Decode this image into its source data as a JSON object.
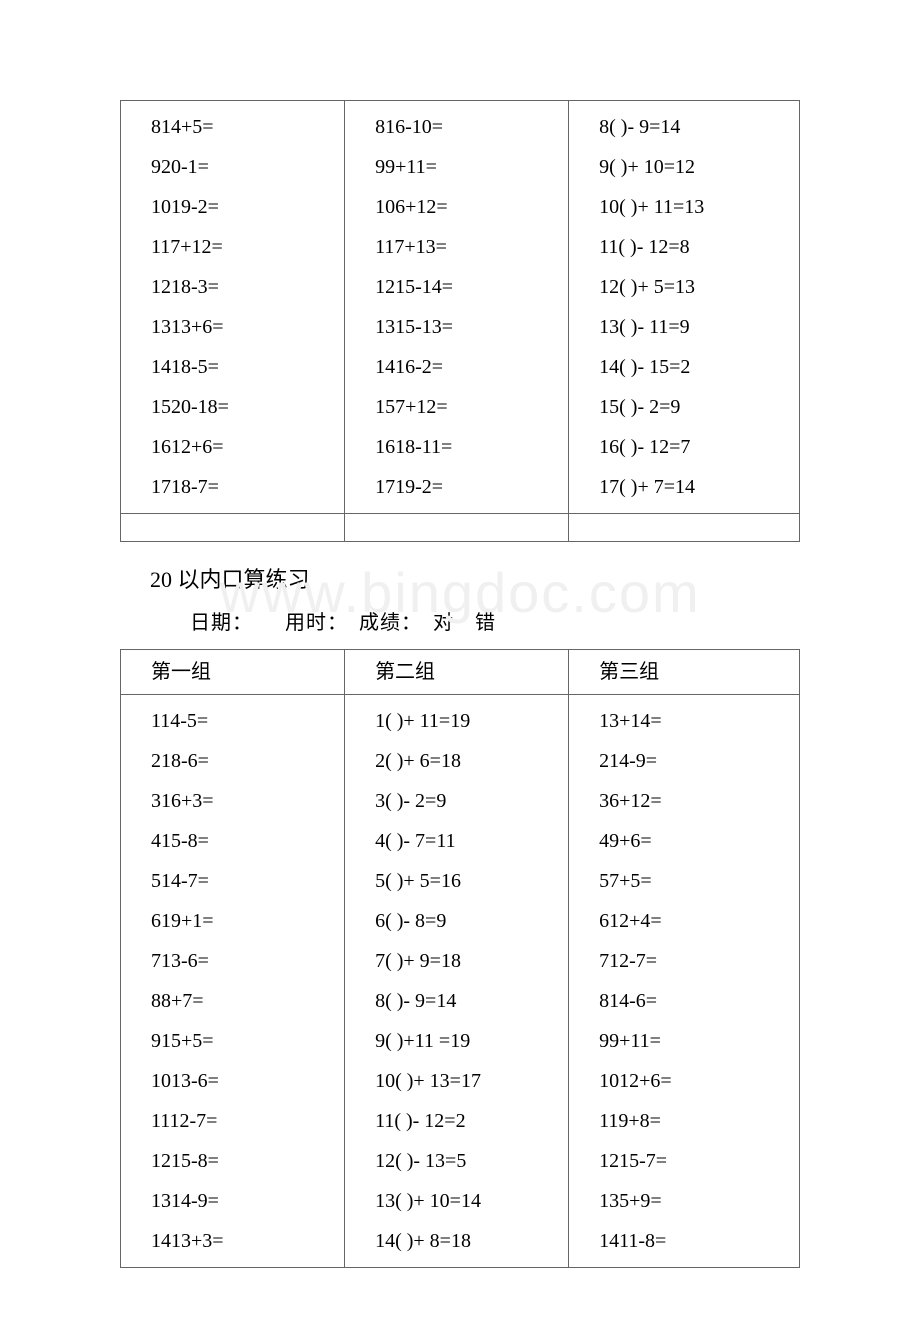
{
  "watermark": "www.bingdoc.com",
  "table1": {
    "col1": [
      "814+5=",
      "920-1=",
      "1019-2=",
      "117+12=",
      "1218-3=",
      "1313+6=",
      "1418-5=",
      "1520-18=",
      "1612+6=",
      "1718-7="
    ],
    "col2": [
      "816-10=",
      "99+11=",
      "106+12=",
      "117+13=",
      "1215-14=",
      "1315-13=",
      "1416-2=",
      "157+12=",
      "1618-11=",
      "1719-2="
    ],
    "col3": [
      "8( )- 9=14",
      "9( )+ 10=12",
      "10( )+ 11=13",
      "11( )- 12=8",
      "12( )+ 5=13",
      "13( )- 11=9",
      "14( )- 15=2",
      "15( )- 2=9",
      "16( )- 12=7",
      "17( )+ 7=14"
    ]
  },
  "section": {
    "title": "20 以内口算练习",
    "subtitle": "日期：　　用时：　成绩：　对　错"
  },
  "table2": {
    "headers": [
      "第一组",
      "第二组",
      "第三组"
    ],
    "col1": [
      "114-5=",
      "218-6=",
      "316+3=",
      "415-8=",
      "514-7=",
      "619+1=",
      "713-6=",
      "88+7=",
      "915+5=",
      "1013-6=",
      "1112-7=",
      "1215-8=",
      "1314-9=",
      "1413+3="
    ],
    "col2": [
      "1( )+ 11=19",
      "2( )+ 6=18",
      "3( )- 2=9",
      "4( )- 7=11",
      "5( )+ 5=16",
      "6( )- 8=9",
      "7( )+ 9=18",
      "8( )- 9=14",
      "9( )+11 =19",
      "10( )+ 13=17",
      "11( )- 12=2",
      "12( )- 13=5",
      "13( )+ 10=14",
      "14( )+ 8=18"
    ],
    "col3": [
      "13+14=",
      "214-9=",
      "36+12=",
      "49+6=",
      "57+5=",
      "612+4=",
      "712-7=",
      "814-6=",
      "99+11=",
      "1012+6=",
      "119+8=",
      "1215-7=",
      "135+9=",
      "1411-8="
    ]
  },
  "style": {
    "page_bg": "#ffffff",
    "text_color": "#000000",
    "border_color": "#666666",
    "watermark_color": "#f0f0f0",
    "body_fontsize": 20,
    "title_fontsize": 22,
    "watermark_fontsize": 56,
    "line_height": 2.0
  }
}
